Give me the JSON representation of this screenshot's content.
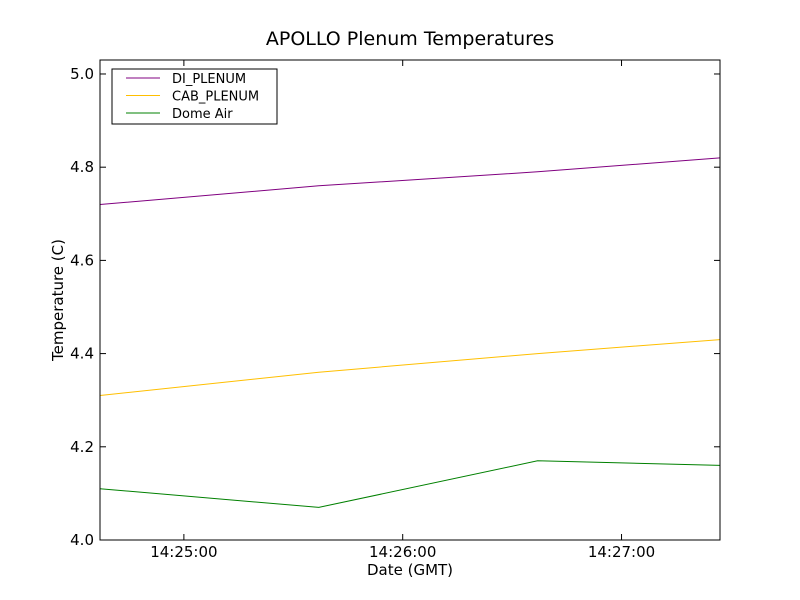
{
  "chart_data": {
    "type": "line",
    "title": "APOLLO Plenum Temperatures",
    "xlabel": "Date (GMT)",
    "ylabel": "Temperature (C)",
    "xlim": [
      "14:24:37",
      "14:27:27"
    ],
    "ylim": [
      4.0,
      5.03
    ],
    "x_ticks": [
      "14:25:00",
      "14:26:00",
      "14:27:00"
    ],
    "y_ticks": [
      "4.0",
      "4.2",
      "4.4",
      "4.6",
      "4.8",
      "5.0"
    ],
    "legend": "top-left",
    "grid": false,
    "series": [
      {
        "name": "DI_PLENUM",
        "color": "#800080",
        "x": [
          "14:24:37",
          "14:25:37",
          "14:26:37",
          "14:27:27"
        ],
        "y": [
          4.72,
          4.76,
          4.79,
          4.82
        ]
      },
      {
        "name": "CAB_PLENUM",
        "color": "#ffbf00",
        "x": [
          "14:24:37",
          "14:25:37",
          "14:26:37",
          "14:27:27"
        ],
        "y": [
          4.31,
          4.36,
          4.4,
          4.43
        ]
      },
      {
        "name": "Dome Air",
        "color": "#008000",
        "x": [
          "14:24:37",
          "14:25:37",
          "14:26:37",
          "14:27:27"
        ],
        "y": [
          4.11,
          4.07,
          4.17,
          4.16
        ]
      }
    ]
  }
}
